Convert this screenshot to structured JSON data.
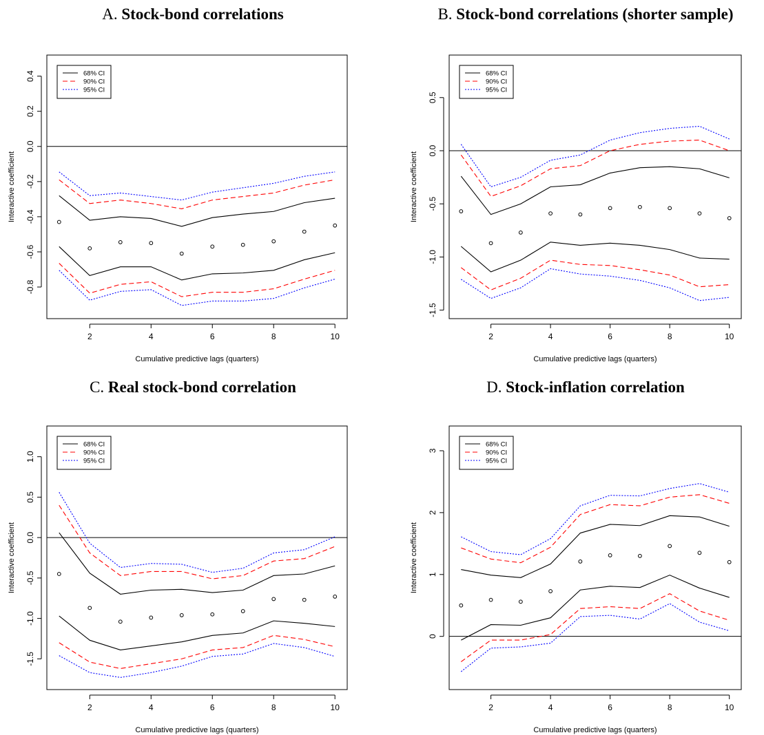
{
  "panels": [
    {
      "letter": "A.",
      "title": "Stock-bond correlations"
    },
    {
      "letter": "B.",
      "title": "Stock-bond correlations (shorter sample)"
    },
    {
      "letter": "C.",
      "title": "Real stock-bond correlation"
    },
    {
      "letter": "D.",
      "title": "Stock-inflation correlation"
    }
  ],
  "colors": {
    "ci68": "#000000",
    "ci90": "#ff0000",
    "ci95": "#0000ff",
    "point": "#000000",
    "zero_line": "#000000"
  },
  "chart_data": [
    {
      "type": "line",
      "title": "Stock-bond correlations",
      "xlabel": "Cumulative predictive lags (quarters)",
      "ylabel": "Interactive coefficient",
      "x": [
        1,
        2,
        3,
        4,
        5,
        6,
        7,
        8,
        9,
        10
      ],
      "xticks": [
        2,
        4,
        6,
        8,
        10
      ],
      "xlim": [
        0.6,
        10.4
      ],
      "yticks": [
        -0.8,
        -0.6,
        -0.4,
        -0.2,
        0.0,
        0.2,
        0.4
      ],
      "ytick_labels": [
        "-0.8",
        "-0.6",
        "-0.4",
        "-0.2",
        "0.0",
        "0.2",
        "0.4"
      ],
      "ylim": [
        -0.98,
        0.52
      ],
      "hline": 0,
      "legend": {
        "position": "top-left",
        "entries": [
          "68% CI",
          "90% CI",
          "95% CI"
        ]
      },
      "points": [
        -0.43,
        -0.58,
        -0.545,
        -0.55,
        -0.61,
        -0.57,
        -0.56,
        -0.54,
        -0.485,
        -0.45
      ],
      "series": [
        {
          "name": "68% CI",
          "style": "solid",
          "upper": [
            -0.28,
            -0.42,
            -0.4,
            -0.41,
            -0.455,
            -0.405,
            -0.385,
            -0.37,
            -0.32,
            -0.295
          ],
          "lower": [
            -0.57,
            -0.735,
            -0.685,
            -0.685,
            -0.76,
            -0.725,
            -0.72,
            -0.705,
            -0.645,
            -0.605
          ]
        },
        {
          "name": "90% CI",
          "style": "dashed",
          "upper": [
            -0.19,
            -0.325,
            -0.305,
            -0.325,
            -0.355,
            -0.305,
            -0.285,
            -0.265,
            -0.22,
            -0.19
          ],
          "lower": [
            -0.665,
            -0.835,
            -0.785,
            -0.77,
            -0.855,
            -0.83,
            -0.83,
            -0.81,
            -0.755,
            -0.705
          ]
        },
        {
          "name": "95% CI",
          "style": "dotted",
          "upper": [
            -0.145,
            -0.28,
            -0.265,
            -0.285,
            -0.305,
            -0.26,
            -0.235,
            -0.21,
            -0.17,
            -0.145
          ],
          "lower": [
            -0.705,
            -0.875,
            -0.825,
            -0.815,
            -0.905,
            -0.88,
            -0.88,
            -0.865,
            -0.805,
            -0.755
          ]
        }
      ]
    },
    {
      "type": "line",
      "title": "Stock-bond correlations (shorter sample)",
      "xlabel": "Cumulative predictive lags (quarters)",
      "ylabel": "Interactive coefficient",
      "x": [
        1,
        2,
        3,
        4,
        5,
        6,
        7,
        8,
        9,
        10
      ],
      "xticks": [
        2,
        4,
        6,
        8,
        10
      ],
      "xlim": [
        0.6,
        10.4
      ],
      "yticks": [
        -1.5,
        -1.0,
        -0.5,
        0.0,
        0.5
      ],
      "ytick_labels": [
        "-1.5",
        "-1.0",
        "-0.5",
        "0.0",
        "0.5"
      ],
      "ylim": [
        -1.58,
        0.9
      ],
      "hline": 0,
      "legend": {
        "position": "top-left",
        "entries": [
          "68% CI",
          "90% CI",
          "95% CI"
        ]
      },
      "points": [
        -0.57,
        -0.87,
        -0.77,
        -0.59,
        -0.6,
        -0.54,
        -0.53,
        -0.54,
        -0.59,
        -0.635
      ],
      "series": [
        {
          "name": "68% CI",
          "style": "solid",
          "upper": [
            -0.24,
            -0.6,
            -0.5,
            -0.34,
            -0.32,
            -0.21,
            -0.16,
            -0.15,
            -0.17,
            -0.255
          ],
          "lower": [
            -0.9,
            -1.14,
            -1.03,
            -0.86,
            -0.89,
            -0.87,
            -0.89,
            -0.93,
            -1.01,
            -1.02
          ]
        },
        {
          "name": "90% CI",
          "style": "dashed",
          "upper": [
            -0.04,
            -0.43,
            -0.33,
            -0.17,
            -0.14,
            0.0,
            0.06,
            0.09,
            0.1,
            0.0
          ],
          "lower": [
            -1.1,
            -1.31,
            -1.2,
            -1.03,
            -1.07,
            -1.08,
            -1.12,
            -1.17,
            -1.28,
            -1.26
          ]
        },
        {
          "name": "95% CI",
          "style": "dotted",
          "upper": [
            0.06,
            -0.34,
            -0.25,
            -0.09,
            -0.04,
            0.1,
            0.17,
            0.21,
            0.23,
            0.11
          ],
          "lower": [
            -1.21,
            -1.39,
            -1.29,
            -1.11,
            -1.16,
            -1.18,
            -1.22,
            -1.29,
            -1.41,
            -1.38
          ]
        }
      ]
    },
    {
      "type": "line",
      "title": "Real stock-bond correlation",
      "xlabel": "Cumulative predictive lags (quarters)",
      "ylabel": "Interactive coefficient",
      "x": [
        1,
        2,
        3,
        4,
        5,
        6,
        7,
        8,
        9,
        10
      ],
      "xticks": [
        2,
        4,
        6,
        8,
        10
      ],
      "xlim": [
        0.6,
        10.4
      ],
      "yticks": [
        -1.5,
        -1.0,
        -0.5,
        0.0,
        0.5,
        1.0
      ],
      "ytick_labels": [
        "-1.5",
        "-1.0",
        "-0.5",
        "0.0",
        "0.5",
        "1.0"
      ],
      "ylim": [
        -1.88,
        1.38
      ],
      "hline": 0,
      "legend": {
        "position": "top-left",
        "entries": [
          "68% CI",
          "90% CI",
          "95% CI"
        ]
      },
      "points": [
        -0.45,
        -0.87,
        -1.04,
        -0.99,
        -0.96,
        -0.95,
        -0.91,
        -0.76,
        -0.77,
        -0.73
      ],
      "series": [
        {
          "name": "68% CI",
          "style": "solid",
          "upper": [
            0.06,
            -0.44,
            -0.7,
            -0.65,
            -0.64,
            -0.68,
            -0.65,
            -0.47,
            -0.45,
            -0.35
          ],
          "lower": [
            -0.97,
            -1.27,
            -1.39,
            -1.34,
            -1.29,
            -1.21,
            -1.18,
            -1.03,
            -1.06,
            -1.1
          ]
        },
        {
          "name": "90% CI",
          "style": "dashed",
          "upper": [
            0.4,
            -0.19,
            -0.47,
            -0.42,
            -0.42,
            -0.51,
            -0.47,
            -0.29,
            -0.26,
            -0.11
          ],
          "lower": [
            -1.3,
            -1.54,
            -1.62,
            -1.56,
            -1.5,
            -1.39,
            -1.36,
            -1.21,
            -1.26,
            -1.35
          ]
        },
        {
          "name": "95% CI",
          "style": "dotted",
          "upper": [
            0.56,
            -0.07,
            -0.37,
            -0.32,
            -0.33,
            -0.43,
            -0.38,
            -0.19,
            -0.15,
            0.01
          ],
          "lower": [
            -1.46,
            -1.67,
            -1.73,
            -1.67,
            -1.59,
            -1.47,
            -1.44,
            -1.31,
            -1.36,
            -1.47
          ]
        }
      ]
    },
    {
      "type": "line",
      "title": "Stock-inflation correlation",
      "xlabel": "Cumulative predictive lags (quarters)",
      "ylabel": "Interactive coefficient",
      "x": [
        1,
        2,
        3,
        4,
        5,
        6,
        7,
        8,
        9,
        10
      ],
      "xticks": [
        2,
        4,
        6,
        8,
        10
      ],
      "xlim": [
        0.6,
        10.4
      ],
      "yticks": [
        0,
        1,
        2,
        3
      ],
      "ytick_labels": [
        "0",
        "1",
        "2",
        "3"
      ],
      "ylim": [
        -0.86,
        3.4
      ],
      "hline": 0,
      "legend": {
        "position": "top-left",
        "entries": [
          "68% CI",
          "90% CI",
          "95% CI"
        ]
      },
      "points": [
        0.5,
        0.59,
        0.56,
        0.73,
        1.21,
        1.31,
        1.3,
        1.46,
        1.35,
        1.2
      ],
      "series": [
        {
          "name": "68% CI",
          "style": "solid",
          "upper": [
            1.08,
            0.99,
            0.95,
            1.17,
            1.67,
            1.81,
            1.79,
            1.95,
            1.93,
            1.78
          ],
          "lower": [
            -0.06,
            0.19,
            0.18,
            0.3,
            0.75,
            0.81,
            0.79,
            0.99,
            0.78,
            0.63
          ]
        },
        {
          "name": "90% CI",
          "style": "dashed",
          "upper": [
            1.43,
            1.25,
            1.19,
            1.44,
            1.97,
            2.13,
            2.11,
            2.25,
            2.29,
            2.15
          ],
          "lower": [
            -0.41,
            -0.06,
            -0.06,
            0.03,
            0.45,
            0.48,
            0.45,
            0.69,
            0.41,
            0.26
          ]
        },
        {
          "name": "95% CI",
          "style": "dotted",
          "upper": [
            1.61,
            1.37,
            1.32,
            1.58,
            2.11,
            2.28,
            2.27,
            2.39,
            2.47,
            2.33
          ],
          "lower": [
            -0.57,
            -0.19,
            -0.17,
            -0.11,
            0.32,
            0.34,
            0.28,
            0.53,
            0.23,
            0.09
          ]
        }
      ]
    }
  ]
}
